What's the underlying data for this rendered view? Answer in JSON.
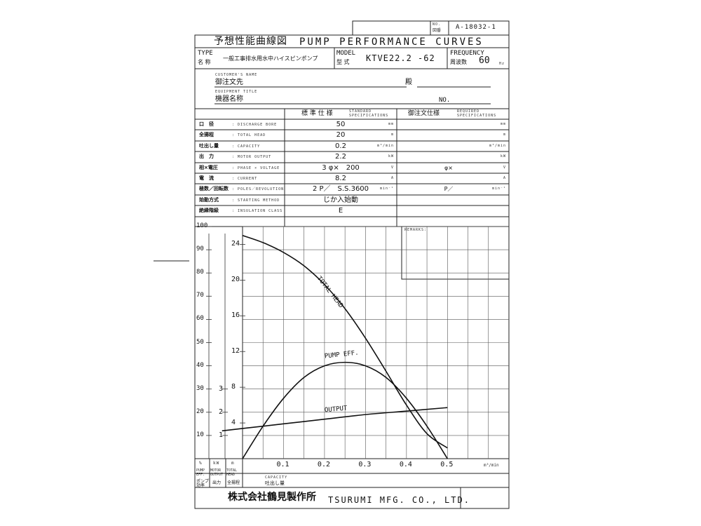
{
  "drawing_no": {
    "label_line1": "NO.",
    "label_line2": "図番",
    "value": "A-18032-1"
  },
  "title": {
    "jp": "予想性能曲線図",
    "en": "PUMP PERFORMANCE CURVES"
  },
  "type": {
    "label_en": "TYPE",
    "label_jp": "名 称",
    "value": "一般工事排水用水中ハイスピンポンプ"
  },
  "model": {
    "label_en": "MODEL",
    "label_jp": "型 式",
    "value": "KTVE22.2 -62"
  },
  "frequency": {
    "label_en": "FREQUENCY",
    "label_jp": "周波数",
    "value": "60",
    "unit": "Hz"
  },
  "customer": {
    "label_en": "CUSTOMER'S NAME",
    "label_jp": "御注文先",
    "suffix": "殿"
  },
  "equipment": {
    "label_en": "EQUIPMENT TITLE",
    "label_jp": "機器名称",
    "no_label": "NO."
  },
  "spec_header": {
    "standard_jp": "標 準 仕 様",
    "standard_en1": "STANDARD",
    "standard_en2": "SPECIFICATIONS",
    "required_jp": "御注文仕様",
    "required_en1": "REQUIRED",
    "required_en2": "SPECIFICATIONS"
  },
  "specs": [
    {
      "jp": "口　径",
      "en": ": DISCHARGE BORE",
      "std": "50",
      "unit": "mm",
      "req": "",
      "req_unit": "mm"
    },
    {
      "jp": "全揚程",
      "en": ": TOTAL HEAD",
      "std": "20",
      "unit": "m",
      "req": "",
      "req_unit": "m"
    },
    {
      "jp": "吐出し量",
      "en": ": CAPACITY",
      "std": "0.2",
      "unit": "m³/min",
      "req": "",
      "req_unit": "m³/min"
    },
    {
      "jp": "出　力",
      "en": ": MOTOR OUTPUT",
      "std": "2.2",
      "unit": "kW",
      "req": "",
      "req_unit": "kW"
    },
    {
      "jp": "相×電圧",
      "en": ": PHASE × VOLTAGE",
      "std": "3 φ×　200",
      "unit": "V",
      "req": "φ×",
      "req_unit": "V"
    },
    {
      "jp": "電　流",
      "en": ": CURRENT",
      "std": "8.2",
      "unit": "A",
      "req": "",
      "req_unit": "A"
    },
    {
      "jp": "極数／回転数",
      "en": ": POLES／REVOLUTION",
      "std": "2 P／　S.S.3600",
      "unit": "min⁻¹",
      "req": "P／",
      "req_unit": "min⁻¹"
    },
    {
      "jp": "始動方式",
      "en": ": STARTING METHOD",
      "std": "じか入始動",
      "unit": "",
      "req": "",
      "req_unit": ""
    },
    {
      "jp": "絶縁階級",
      "en": ": INSULATION CLASS",
      "std": "E",
      "unit": "",
      "req": "",
      "req_unit": ""
    }
  ],
  "remarks": {
    "label": "REMARKS:"
  },
  "chart_data": {
    "type": "line",
    "x_ticks": [
      "0.1",
      "0.2",
      "0.3",
      "0.4",
      "0.5"
    ],
    "x_unit": "m³/min",
    "x_range": [
      0,
      0.65
    ],
    "axes": [
      {
        "name": "pump_eff",
        "unit": "%",
        "ticks": [
          "10",
          "20",
          "30",
          "40",
          "50",
          "60",
          "70",
          "80",
          "90",
          "100"
        ],
        "range": [
          0,
          100
        ]
      },
      {
        "name": "output",
        "unit": "kW",
        "ticks": [
          "1",
          "2",
          "3"
        ],
        "range": [
          0,
          10
        ]
      },
      {
        "name": "total_head",
        "unit": "m",
        "ticks": [
          "4",
          "8",
          "12",
          "16",
          "20",
          "24"
        ],
        "range": [
          0,
          26
        ]
      }
    ],
    "series": [
      {
        "name": "TOTAL HEAD",
        "axis": "total_head",
        "x": [
          0,
          0.05,
          0.1,
          0.15,
          0.2,
          0.25,
          0.3,
          0.35,
          0.4,
          0.45,
          0.5
        ],
        "y": [
          25.0,
          24.2,
          23.1,
          21.6,
          19.5,
          16.8,
          13.5,
          9.8,
          6.0,
          2.8,
          1.2
        ]
      },
      {
        "name": "PUMP EFF.",
        "axis": "pump_eff",
        "x": [
          0,
          0.05,
          0.1,
          0.15,
          0.2,
          0.25,
          0.3,
          0.35,
          0.4,
          0.45,
          0.5
        ],
        "y": [
          0,
          14,
          26,
          35,
          40,
          41.5,
          40,
          35,
          26,
          14,
          0
        ]
      },
      {
        "name": "OUTPUT",
        "axis": "output",
        "x": [
          -0.05,
          0,
          0.1,
          0.2,
          0.3,
          0.4,
          0.5
        ],
        "y": [
          1.2,
          1.3,
          1.5,
          1.7,
          1.9,
          2.05,
          2.2
        ]
      }
    ],
    "bottom_labels": {
      "pump_eff": {
        "unit": "%",
        "en": "PUMP EFF.",
        "jp": "ポンプ効率"
      },
      "output": {
        "unit": "kW",
        "en": "MOTOR OUTPUT",
        "jp": "出力"
      },
      "total_head": {
        "unit": "m",
        "en": "TOTAL HEAD",
        "jp": "全揚程"
      },
      "capacity": {
        "en": "CAPACITY",
        "jp": "吐出し量"
      }
    }
  },
  "footer": {
    "company_jp": "株式会社鶴見製作所",
    "company_en": "TSURUMI MFG. CO., LTD."
  }
}
